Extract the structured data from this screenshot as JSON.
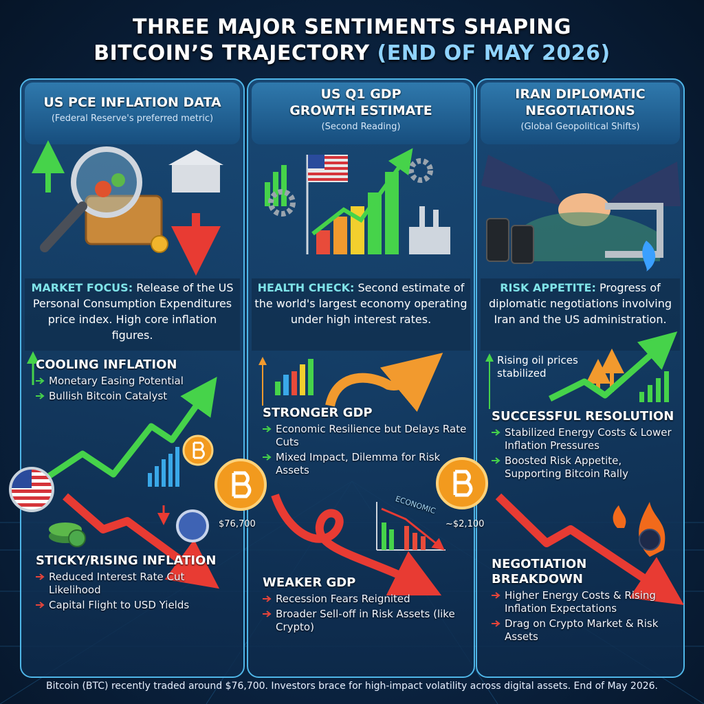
{
  "title": {
    "line1": "THREE MAJOR SENTIMENTS SHAPING",
    "line2": "BITCOIN’S TRAJECTORY",
    "date": "(END OF MAY 2026)"
  },
  "panels": [
    {
      "heading": [
        "US PCE INFLATION DATA"
      ],
      "subheading": "(Federal Reserve's preferred metric)",
      "focus": {
        "label": "MARKET FOCUS:",
        "text": "Release of the US Personal Consumption Expenditures price index. High core inflation figures."
      },
      "bullish": {
        "title": "COOLING INFLATION",
        "points": [
          "Monetary Easing Potential",
          "Bullish Bitcoin Catalyst"
        ]
      },
      "bearish": {
        "title": "STICKY/RISING INFLATION",
        "points": [
          "Reduced Interest Rate Cut Likelihood",
          "Capital Flight to USD Yields"
        ]
      }
    },
    {
      "heading": [
        "US Q1 GDP",
        "GROWTH ESTIMATE"
      ],
      "subheading": "(Second Reading)",
      "focus": {
        "label": "HEALTH CHECK:",
        "text": "Second estimate of the world's largest economy operating under high interest rates."
      },
      "bullish": {
        "title": "STRONGER GDP",
        "points": [
          "Economic Resilience but Delays Rate Cuts",
          "Mixed Impact, Dilemma for Risk Assets"
        ]
      },
      "bearish": {
        "title": "WEAKER GDP",
        "points": [
          "Recession Fears Reignited",
          "Broader Sell-off in Risk Assets (like Crypto)"
        ]
      }
    },
    {
      "heading": [
        "IRAN DIPLOMATIC",
        "NEGOTIATIONS"
      ],
      "subheading": "(Global Geopolitical Shifts)",
      "focus": {
        "label": "RISK APPETITE:",
        "text": "Progress of diplomatic negotiations involving Iran and the US administration."
      },
      "note": "Rising oil prices stabilized",
      "bullish": {
        "title": "SUCCESSFUL RESOLUTION",
        "points": [
          "Stabilized Energy Costs & Lower Inflation Pressures",
          "Boosted Risk Appetite, Supporting Bitcoin Rally"
        ]
      },
      "bearish": {
        "title": "NEGOTIATION BREAKDOWN",
        "points": [
          "Higher Energy Costs & Rising Inflation Expectations",
          "Drag on Crypto Market & Risk Assets"
        ]
      }
    }
  ],
  "price_labels": [
    "$76,700",
    "~$2,100"
  ],
  "chart_label": "ECONOMIC",
  "footer": "Bitcoin (BTC) recently traded around $76,700. Investors brace for high-impact volatility across digital assets. End of May 2026."
}
